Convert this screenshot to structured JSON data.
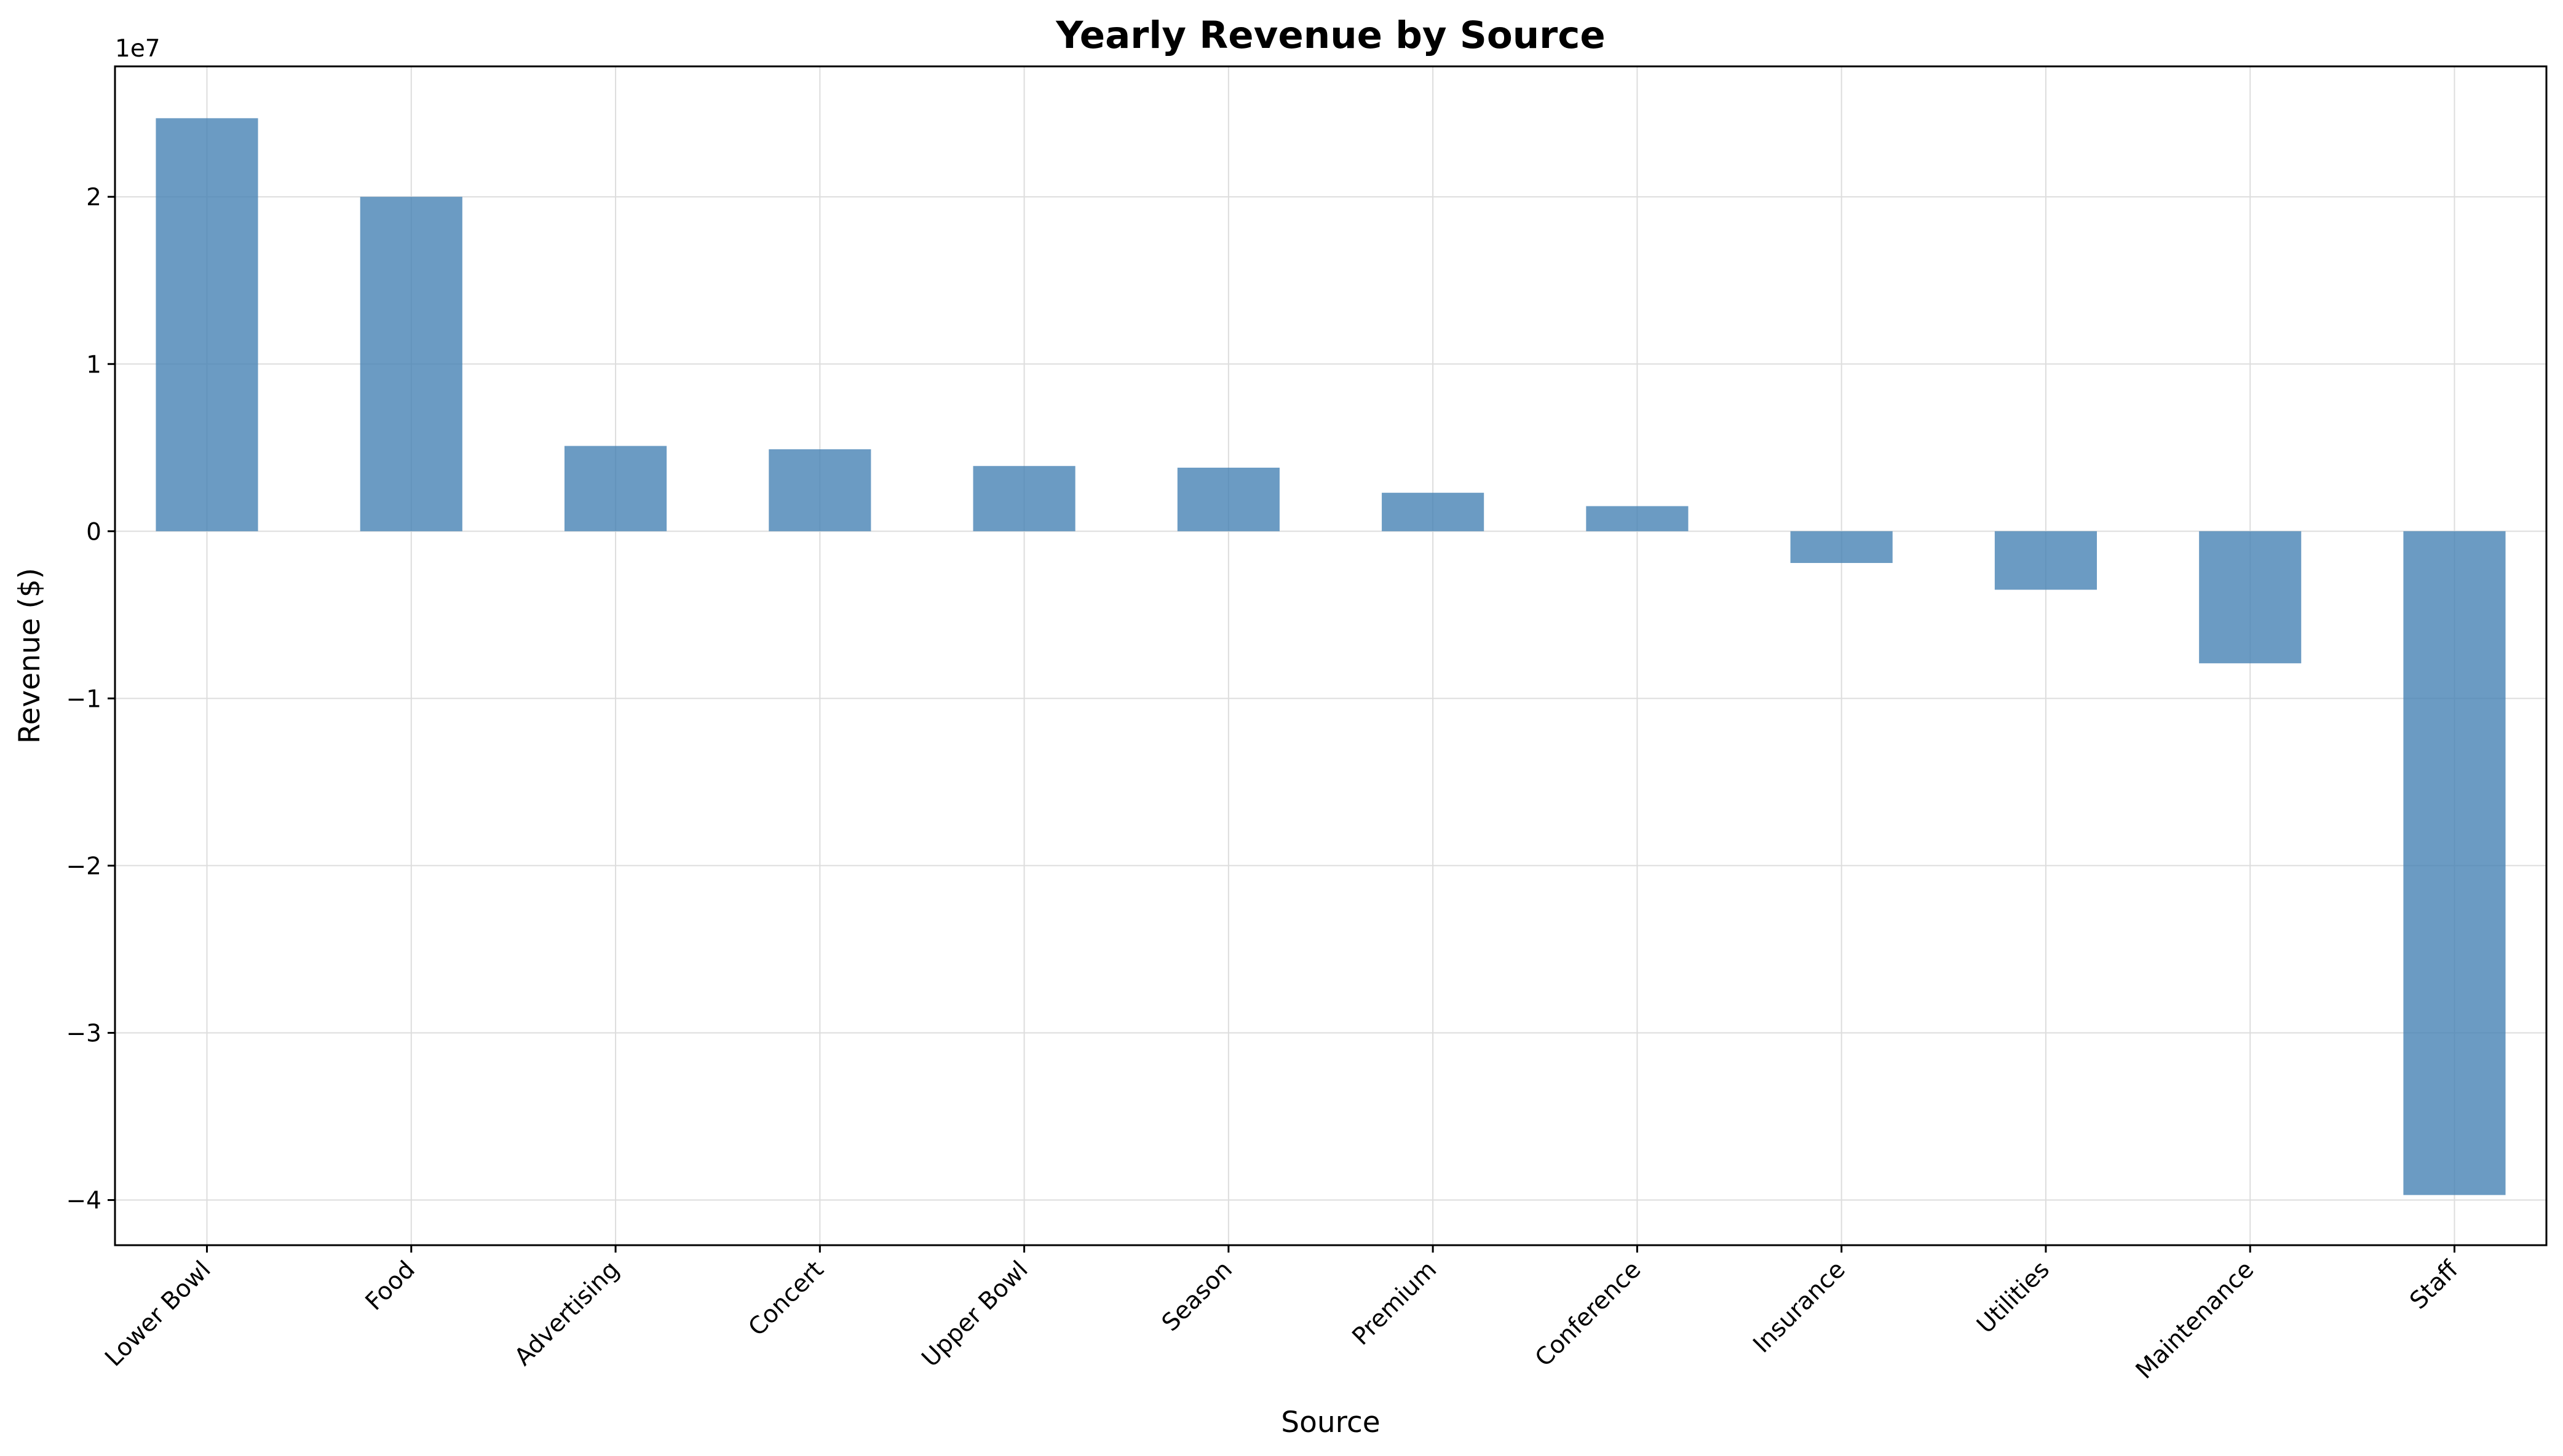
{
  "chart_data": {
    "type": "bar",
    "title": "Yearly Revenue by Source",
    "xlabel": "Source",
    "ylabel": "Revenue ($)",
    "y_offset_label": "1e7",
    "categories": [
      "Lower Bowl",
      "Food",
      "Advertising",
      "Concert",
      "Upper Bowl",
      "Season",
      "Premium",
      "Conference",
      "Insurance",
      "Utilities",
      "Maintenance",
      "Staff"
    ],
    "values": [
      24700000,
      20000000,
      5100000,
      4900000,
      3900000,
      3800000,
      2300000,
      1500000,
      -1900000,
      -3500000,
      -7900000,
      -39700000
    ],
    "ylim": [
      -42700000,
      27800000
    ],
    "yticks": [
      -40000000,
      -30000000,
      -20000000,
      -10000000,
      0,
      10000000,
      20000000
    ],
    "ytick_labels": [
      "−4",
      "−3",
      "−2",
      "−1",
      "0",
      "1",
      "2"
    ],
    "grid": true,
    "bar_color": "#4682b4"
  }
}
